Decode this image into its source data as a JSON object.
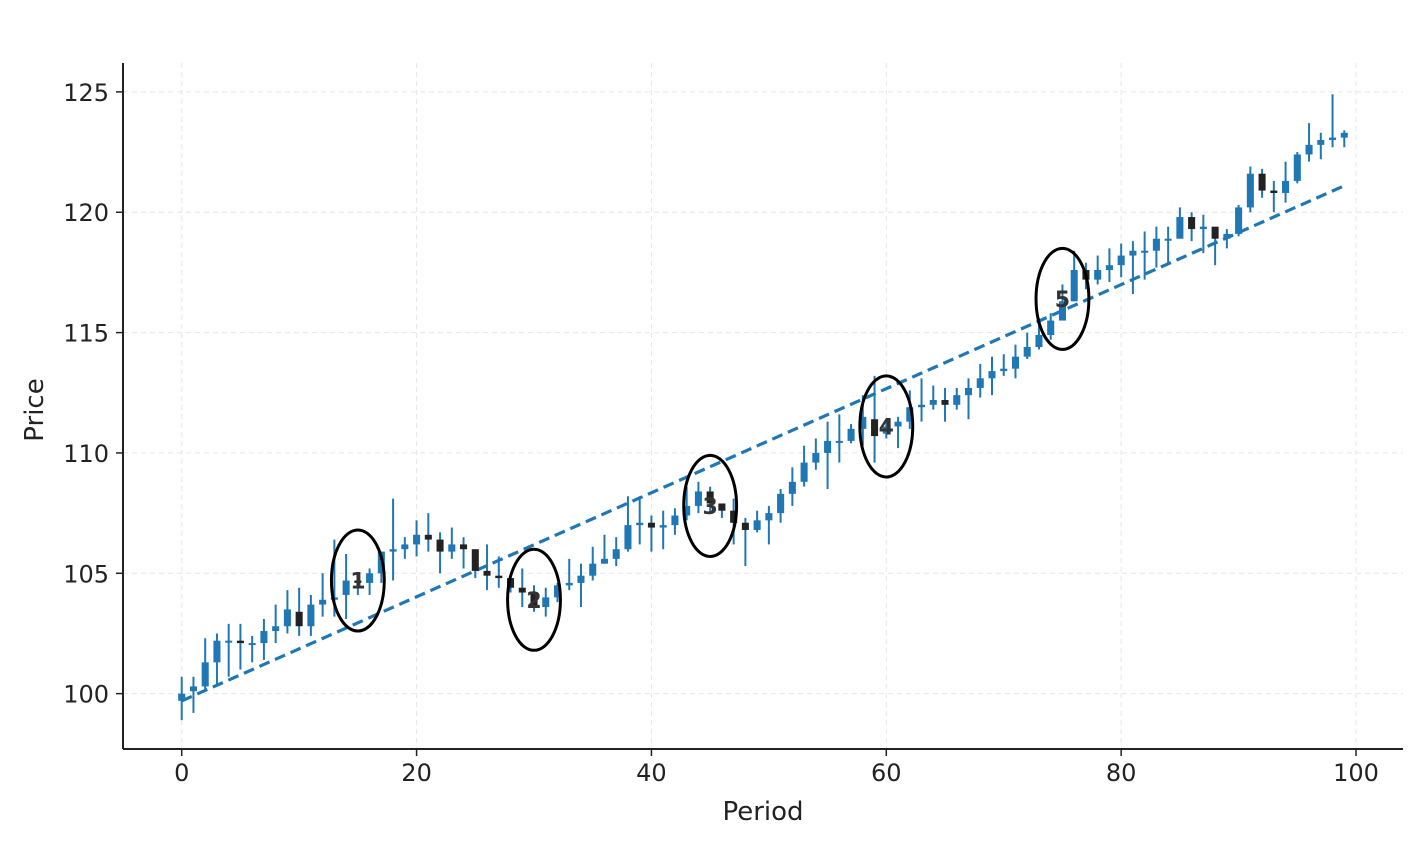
{
  "chart_data": {
    "type": "candlestick",
    "title": "",
    "xlabel": "Period",
    "ylabel": "Price",
    "xlim": [
      -5,
      104
    ],
    "ylim": [
      97.7,
      126.2
    ],
    "xticks": [
      0,
      20,
      40,
      60,
      80,
      100
    ],
    "yticks": [
      100,
      105,
      110,
      115,
      120,
      125
    ],
    "grid": true,
    "colors": {
      "candle": "#1f77b4",
      "dark": "#222222",
      "trend": "#1f77b4",
      "circle": "#000000",
      "grid": "#e6e6e6"
    },
    "trend_line": {
      "x": [
        0,
        99
      ],
      "y": [
        99.7,
        121.1
      ],
      "style": "dashed"
    },
    "annotations": [
      {
        "label": "1",
        "x": 15,
        "y": 104.7
      },
      {
        "label": "2",
        "x": 30,
        "y": 103.9
      },
      {
        "label": "3",
        "x": 45,
        "y": 107.8
      },
      {
        "label": "4",
        "x": 60,
        "y": 111.1
      },
      {
        "label": "5",
        "x": 75,
        "y": 116.4
      }
    ],
    "candles": [
      [
        99.7,
        100.0,
        98.9,
        100.7
      ],
      [
        100.1,
        100.3,
        99.2,
        100.7
      ],
      [
        100.3,
        101.3,
        100.1,
        102.3
      ],
      [
        101.3,
        102.2,
        100.3,
        102.5
      ],
      [
        102.2,
        102.2,
        100.7,
        102.9
      ],
      [
        102.2,
        102.1,
        101.0,
        102.9
      ],
      [
        102.1,
        102.1,
        101.3,
        102.4
      ],
      [
        102.1,
        102.6,
        101.4,
        103.1
      ],
      [
        102.6,
        102.8,
        102.1,
        103.7
      ],
      [
        102.8,
        103.5,
        102.5,
        104.3
      ],
      [
        103.4,
        102.8,
        102.4,
        104.4
      ],
      [
        102.8,
        103.7,
        102.4,
        104.1
      ],
      [
        103.7,
        103.9,
        103.2,
        105.0
      ],
      [
        103.9,
        104.0,
        103.2,
        106.4
      ],
      [
        104.1,
        104.7,
        103.1,
        105.8
      ],
      [
        104.7,
        104.6,
        104.1,
        104.9
      ],
      [
        104.6,
        105.0,
        104.1,
        105.2
      ],
      [
        105.0,
        105.9,
        104.6,
        105.9
      ],
      [
        105.9,
        106.0,
        104.7,
        108.1
      ],
      [
        106.0,
        106.2,
        105.6,
        106.5
      ],
      [
        106.2,
        106.6,
        105.7,
        107.2
      ],
      [
        106.6,
        106.4,
        105.9,
        107.5
      ],
      [
        106.4,
        105.9,
        105.0,
        106.7
      ],
      [
        105.9,
        106.2,
        105.6,
        106.9
      ],
      [
        106.2,
        106.0,
        105.2,
        106.5
      ],
      [
        106.0,
        105.1,
        104.8,
        106.0
      ],
      [
        105.1,
        104.9,
        104.3,
        106.2
      ],
      [
        104.9,
        104.8,
        104.4,
        105.7
      ],
      [
        104.8,
        104.4,
        104.2,
        104.9
      ],
      [
        104.4,
        104.2,
        103.6,
        105.2
      ],
      [
        104.2,
        103.6,
        103.4,
        104.5
      ],
      [
        103.6,
        104.0,
        103.2,
        104.4
      ],
      [
        104.0,
        104.5,
        103.8,
        104.6
      ],
      [
        104.5,
        104.6,
        104.3,
        105.6
      ],
      [
        104.6,
        104.9,
        103.6,
        105.4
      ],
      [
        104.9,
        105.4,
        104.7,
        106.1
      ],
      [
        105.4,
        105.6,
        105.4,
        106.6
      ],
      [
        105.6,
        106.0,
        105.3,
        106.5
      ],
      [
        106.0,
        107.0,
        105.9,
        108.2
      ],
      [
        107.0,
        107.1,
        106.2,
        108.2
      ],
      [
        107.1,
        106.9,
        105.9,
        107.4
      ],
      [
        106.9,
        107.0,
        106.0,
        107.6
      ],
      [
        107.0,
        107.4,
        106.6,
        107.7
      ],
      [
        107.4,
        107.8,
        107.2,
        108.6
      ],
      [
        107.8,
        108.4,
        107.5,
        108.8
      ],
      [
        108.4,
        107.9,
        107.5,
        108.6
      ],
      [
        107.9,
        107.6,
        107.3,
        107.7
      ],
      [
        107.6,
        107.1,
        106.2,
        108.1
      ],
      [
        107.1,
        106.8,
        105.3,
        107.3
      ],
      [
        106.8,
        107.2,
        106.7,
        107.6
      ],
      [
        107.2,
        107.5,
        106.2,
        107.8
      ],
      [
        107.5,
        108.3,
        107.1,
        108.5
      ],
      [
        108.3,
        108.8,
        107.8,
        109.4
      ],
      [
        108.8,
        109.6,
        108.6,
        110.3
      ],
      [
        109.6,
        110.0,
        109.3,
        110.6
      ],
      [
        110.0,
        110.5,
        108.5,
        111.3
      ],
      [
        110.5,
        110.5,
        109.6,
        111.6
      ],
      [
        110.5,
        111.0,
        110.4,
        111.2
      ],
      [
        111.0,
        111.5,
        110.3,
        112.4
      ],
      [
        111.4,
        110.7,
        109.6,
        113.2
      ],
      [
        110.8,
        111.1,
        110.6,
        111.4
      ],
      [
        111.1,
        111.3,
        110.2,
        111.5
      ],
      [
        111.3,
        111.9,
        111.0,
        112.6
      ],
      [
        111.9,
        112.0,
        111.3,
        113.1
      ],
      [
        112.0,
        112.2,
        111.8,
        112.8
      ],
      [
        112.2,
        112.0,
        111.3,
        112.7
      ],
      [
        112.0,
        112.4,
        111.8,
        112.7
      ],
      [
        112.4,
        112.7,
        111.4,
        113.1
      ],
      [
        112.7,
        113.1,
        112.3,
        113.7
      ],
      [
        113.1,
        113.4,
        112.4,
        114.0
      ],
      [
        113.4,
        113.5,
        113.2,
        114.1
      ],
      [
        113.5,
        114.0,
        113.1,
        114.5
      ],
      [
        114.0,
        114.4,
        113.9,
        115.0
      ],
      [
        114.4,
        114.9,
        114.3,
        115.6
      ],
      [
        114.9,
        115.5,
        114.7,
        115.8
      ],
      [
        115.5,
        116.3,
        115.6,
        117.0
      ],
      [
        116.3,
        117.6,
        116.3,
        118.4
      ],
      [
        117.6,
        117.2,
        116.8,
        117.9
      ],
      [
        117.2,
        117.6,
        117.0,
        118.2
      ],
      [
        117.6,
        117.8,
        117.1,
        118.5
      ],
      [
        117.8,
        118.2,
        117.3,
        118.7
      ],
      [
        118.2,
        118.4,
        116.6,
        118.8
      ],
      [
        118.4,
        118.4,
        117.2,
        119.2
      ],
      [
        118.4,
        118.9,
        117.7,
        119.4
      ],
      [
        118.9,
        118.9,
        117.9,
        119.4
      ],
      [
        118.9,
        119.8,
        119.0,
        120.2
      ],
      [
        119.8,
        119.3,
        118.8,
        120.0
      ],
      [
        119.3,
        119.4,
        118.3,
        119.9
      ],
      [
        119.4,
        118.9,
        117.8,
        119.3
      ],
      [
        118.9,
        119.1,
        118.5,
        119.3
      ],
      [
        119.1,
        120.2,
        119.0,
        120.3
      ],
      [
        120.2,
        121.6,
        120.0,
        121.9
      ],
      [
        121.6,
        120.9,
        120.6,
        121.8
      ],
      [
        120.9,
        120.8,
        120.0,
        121.3
      ],
      [
        120.8,
        121.3,
        120.4,
        122.1
      ],
      [
        121.3,
        122.4,
        121.2,
        122.5
      ],
      [
        122.4,
        122.8,
        122.1,
        123.7
      ],
      [
        122.8,
        123.0,
        122.2,
        123.3
      ],
      [
        123.0,
        123.1,
        122.7,
        124.9
      ],
      [
        123.1,
        123.3,
        122.7,
        123.4
      ]
    ]
  }
}
